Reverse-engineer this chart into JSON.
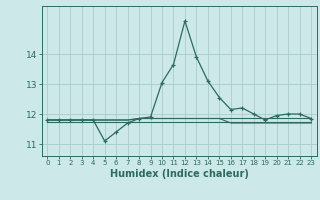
{
  "xlabel": "Humidex (Indice chaleur)",
  "background_color": "#cce8e8",
  "grid_color": "#aacccc",
  "line_color": "#2d6b5e",
  "hours": [
    0,
    1,
    2,
    3,
    4,
    5,
    6,
    7,
    8,
    9,
    10,
    11,
    12,
    13,
    14,
    15,
    16,
    17,
    18,
    19,
    20,
    21,
    22,
    23
  ],
  "main_line": [
    11.8,
    11.8,
    11.8,
    11.8,
    11.8,
    11.1,
    11.4,
    11.7,
    11.85,
    11.9,
    13.05,
    13.65,
    15.1,
    13.9,
    13.1,
    12.55,
    12.15,
    12.2,
    12.0,
    11.8,
    11.95,
    12.0,
    12.0,
    11.85
  ],
  "flat_line1": [
    11.8,
    11.8,
    11.8,
    11.8,
    11.8,
    11.8,
    11.8,
    11.8,
    11.85,
    11.85,
    11.85,
    11.85,
    11.85,
    11.85,
    11.85,
    11.85,
    11.85,
    11.85,
    11.85,
    11.85,
    11.85,
    11.85,
    11.85,
    11.85
  ],
  "flat_line2": [
    11.8,
    11.8,
    11.8,
    11.8,
    11.8,
    11.8,
    11.8,
    11.8,
    11.85,
    11.85,
    11.85,
    11.85,
    11.85,
    11.85,
    11.85,
    11.85,
    11.7,
    11.7,
    11.7,
    11.7,
    11.7,
    11.7,
    11.7,
    11.7
  ],
  "flat_line3": [
    11.75,
    11.75,
    11.75,
    11.75,
    11.75,
    11.75,
    11.75,
    11.75,
    11.75,
    11.75,
    11.75,
    11.75,
    11.75,
    11.75,
    11.75,
    11.75,
    11.75,
    11.75,
    11.75,
    11.75,
    11.75,
    11.75,
    11.75,
    11.75
  ],
  "ylim": [
    10.6,
    15.6
  ],
  "yticks": [
    11,
    12,
    13,
    14
  ],
  "xticks": [
    0,
    1,
    2,
    3,
    4,
    5,
    6,
    7,
    8,
    9,
    10,
    11,
    12,
    13,
    14,
    15,
    16,
    17,
    18,
    19,
    20,
    21,
    22,
    23
  ]
}
